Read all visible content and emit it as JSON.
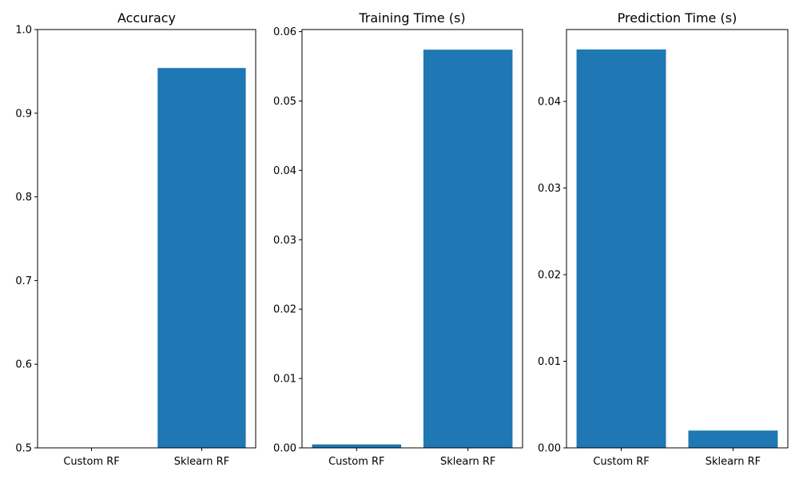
{
  "colors": {
    "bar": "#1f77b4",
    "axes": "#000000",
    "background": "#ffffff"
  },
  "chart_data": [
    {
      "type": "bar",
      "title": "Accuracy",
      "categories": [
        "Custom RF",
        "Sklearn RF"
      ],
      "values": [
        0.5,
        0.954
      ],
      "ylim": [
        0.5,
        1.0
      ],
      "yticks": [
        0.5,
        0.6,
        0.7,
        0.8,
        0.9,
        1.0
      ],
      "ytick_labels": [
        "0.5",
        "0.6",
        "0.7",
        "0.8",
        "0.9",
        "1.0"
      ],
      "xlabel": "",
      "ylabel": "",
      "grid": false
    },
    {
      "type": "bar",
      "title": "Training Time (s)",
      "categories": [
        "Custom RF",
        "Sklearn RF"
      ],
      "values": [
        0.0005,
        0.0574
      ],
      "ylim": [
        0,
        0.0603
      ],
      "yticks": [
        0,
        0.01,
        0.02,
        0.03,
        0.04,
        0.05,
        0.06
      ],
      "ytick_labels": [
        "0.00",
        "0.01",
        "0.02",
        "0.03",
        "0.04",
        "0.05",
        "0.06"
      ],
      "xlabel": "",
      "ylabel": "",
      "grid": false
    },
    {
      "type": "bar",
      "title": "Prediction Time (s)",
      "categories": [
        "Custom RF",
        "Sklearn RF"
      ],
      "values": [
        0.046,
        0.002
      ],
      "ylim": [
        0,
        0.0483
      ],
      "yticks": [
        0,
        0.01,
        0.02,
        0.03,
        0.04
      ],
      "ytick_labels": [
        "0.00",
        "0.01",
        "0.02",
        "0.03",
        "0.04"
      ],
      "xlabel": "",
      "ylabel": "",
      "grid": false
    }
  ]
}
